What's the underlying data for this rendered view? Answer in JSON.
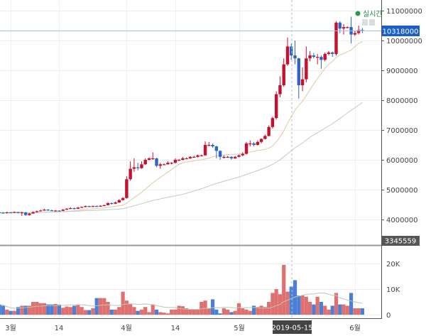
{
  "live_label": "실시간",
  "chart_data": [
    {
      "type": "candlestick",
      "price_axis": {
        "ticks": [
          11000000,
          10000000,
          9000000,
          8000000,
          7000000,
          6000000,
          5000000,
          4000000
        ],
        "range": [
          3345559,
          11350000
        ]
      },
      "current_price": "10318000",
      "min_price_label": "3345559",
      "x_ticks": [
        "3월",
        "14",
        "4월",
        "14",
        "5월",
        "6월"
      ],
      "crosshair_date": "2019-05-15",
      "grid": true,
      "colors": {
        "up": "#c8102e",
        "down": "#2f66c4",
        "ma_short": "#e0c9a0",
        "ma_long": "#b9cfc4",
        "current_price": "#1a5fc8"
      },
      "candles_millions_ohlc": [
        [
          4.24,
          4.26,
          4.21,
          4.23
        ],
        [
          4.23,
          4.25,
          4.2,
          4.22
        ],
        [
          4.22,
          4.26,
          4.2,
          4.24
        ],
        [
          4.24,
          4.25,
          4.21,
          4.23
        ],
        [
          4.23,
          4.27,
          4.22,
          4.25
        ],
        [
          4.25,
          4.26,
          4.2,
          4.22
        ],
        [
          4.22,
          4.26,
          4.12,
          4.24
        ],
        [
          4.24,
          4.25,
          4.12,
          4.15
        ],
        [
          4.15,
          4.22,
          4.13,
          4.2
        ],
        [
          4.2,
          4.27,
          4.19,
          4.25
        ],
        [
          4.25,
          4.3,
          4.23,
          4.28
        ],
        [
          4.28,
          4.33,
          4.27,
          4.3
        ],
        [
          4.3,
          4.36,
          4.29,
          4.33
        ],
        [
          4.33,
          4.35,
          4.29,
          4.31
        ],
        [
          4.31,
          4.33,
          4.28,
          4.3
        ],
        [
          4.3,
          4.32,
          4.28,
          4.3
        ],
        [
          4.3,
          4.31,
          4.27,
          4.29
        ],
        [
          4.29,
          4.35,
          4.28,
          4.33
        ],
        [
          4.33,
          4.38,
          4.32,
          4.36
        ],
        [
          4.36,
          4.41,
          4.35,
          4.38
        ],
        [
          4.38,
          4.4,
          4.34,
          4.36
        ],
        [
          4.36,
          4.42,
          4.35,
          4.4
        ],
        [
          4.4,
          4.44,
          4.39,
          4.42
        ],
        [
          4.42,
          4.47,
          4.41,
          4.45
        ],
        [
          4.45,
          4.46,
          4.41,
          4.43
        ],
        [
          4.43,
          4.47,
          4.42,
          4.45
        ],
        [
          4.45,
          4.47,
          4.42,
          4.44
        ],
        [
          4.44,
          4.48,
          4.43,
          4.46
        ],
        [
          4.46,
          4.5,
          4.45,
          4.48
        ],
        [
          4.48,
          4.58,
          4.47,
          4.55
        ],
        [
          4.55,
          4.57,
          4.5,
          4.53
        ],
        [
          4.53,
          4.6,
          4.52,
          4.57
        ],
        [
          4.57,
          4.68,
          4.56,
          4.65
        ],
        [
          4.65,
          4.75,
          4.63,
          4.72
        ],
        [
          4.72,
          5.45,
          4.7,
          5.35
        ],
        [
          5.35,
          5.95,
          5.3,
          5.7
        ],
        [
          5.7,
          6.05,
          5.6,
          5.75
        ],
        [
          5.75,
          5.9,
          5.65,
          5.72
        ],
        [
          5.72,
          5.95,
          5.7,
          5.85
        ],
        [
          5.85,
          6.05,
          5.83,
          6.0
        ],
        [
          6.0,
          6.08,
          5.98,
          6.05
        ],
        [
          6.05,
          6.25,
          6.0,
          6.05
        ],
        [
          6.05,
          6.07,
          5.75,
          5.8
        ],
        [
          5.8,
          5.9,
          5.7,
          5.85
        ],
        [
          5.85,
          5.88,
          5.82,
          5.85
        ],
        [
          5.85,
          5.95,
          5.84,
          5.9
        ],
        [
          5.9,
          5.92,
          5.85,
          5.9
        ],
        [
          5.9,
          6.05,
          5.88,
          6.0
        ],
        [
          6.0,
          6.03,
          5.96,
          6.0
        ],
        [
          6.0,
          6.1,
          5.98,
          6.05
        ],
        [
          6.05,
          6.08,
          6.02,
          6.05
        ],
        [
          6.05,
          6.12,
          6.03,
          6.1
        ],
        [
          6.1,
          6.13,
          6.07,
          6.1
        ],
        [
          6.1,
          6.18,
          6.08,
          6.15
        ],
        [
          6.15,
          6.18,
          6.12,
          6.15
        ],
        [
          6.15,
          6.62,
          6.14,
          6.5
        ],
        [
          6.5,
          6.6,
          6.45,
          6.5
        ],
        [
          6.5,
          6.55,
          6.4,
          6.45
        ],
        [
          6.45,
          6.47,
          6.05,
          6.3
        ],
        [
          6.3,
          6.32,
          6.0,
          6.1
        ],
        [
          6.1,
          6.15,
          6.05,
          6.1
        ],
        [
          6.1,
          6.13,
          6.07,
          6.1
        ],
        [
          6.1,
          6.12,
          6.0,
          6.05
        ],
        [
          6.05,
          6.13,
          6.03,
          6.1
        ],
        [
          6.1,
          6.18,
          6.08,
          6.15
        ],
        [
          6.15,
          6.25,
          6.12,
          6.2
        ],
        [
          6.2,
          6.6,
          6.18,
          6.55
        ],
        [
          6.55,
          6.65,
          6.45,
          6.55
        ],
        [
          6.55,
          6.6,
          6.45,
          6.5
        ],
        [
          6.5,
          6.65,
          6.48,
          6.6
        ],
        [
          6.6,
          6.72,
          6.55,
          6.7
        ],
        [
          6.7,
          6.85,
          6.68,
          6.8
        ],
        [
          6.8,
          7.15,
          6.78,
          7.1
        ],
        [
          7.1,
          7.45,
          7.05,
          7.4
        ],
        [
          7.4,
          8.3,
          7.35,
          8.2
        ],
        [
          8.2,
          8.8,
          8.1,
          8.5
        ],
        [
          8.5,
          9.4,
          8.45,
          9.2
        ],
        [
          9.2,
          10.1,
          9.15,
          9.8
        ],
        [
          9.8,
          9.9,
          9.35,
          9.5
        ],
        [
          9.5,
          10.0,
          9.2,
          9.4
        ],
        [
          9.4,
          9.42,
          8.05,
          8.5
        ],
        [
          8.5,
          9.1,
          8.3,
          8.7
        ],
        [
          8.7,
          9.8,
          8.6,
          9.4
        ],
        [
          9.4,
          9.65,
          9.3,
          9.5
        ],
        [
          9.5,
          9.58,
          9.4,
          9.45
        ],
        [
          9.45,
          9.55,
          9.2,
          9.45
        ],
        [
          9.45,
          9.5,
          9.05,
          9.35
        ],
        [
          9.35,
          9.6,
          9.3,
          9.55
        ],
        [
          9.55,
          9.65,
          9.5,
          9.6
        ],
        [
          9.6,
          9.63,
          9.45,
          9.55
        ],
        [
          9.55,
          10.65,
          9.5,
          10.6
        ],
        [
          10.6,
          10.65,
          10.25,
          10.4
        ],
        [
          10.4,
          10.55,
          10.2,
          10.45
        ],
        [
          10.45,
          10.47,
          10.4,
          10.45
        ],
        [
          10.45,
          10.8,
          9.9,
          10.2
        ],
        [
          10.2,
          10.32,
          10.15,
          10.25
        ],
        [
          10.25,
          10.5,
          10.2,
          10.35
        ],
        [
          10.35,
          10.42,
          10.25,
          10.318
        ]
      ]
    },
    {
      "type": "bar",
      "title": "",
      "y_ticks": [
        "20K",
        "10K",
        "0"
      ],
      "ylim": [
        0,
        25000
      ],
      "volumes_k": [
        4,
        3.5,
        2,
        1.5,
        1.5,
        3,
        3.5,
        3.5,
        3.5,
        5,
        5,
        4.5,
        4.5,
        4,
        4,
        4.2,
        3.9,
        2.7,
        3.2,
        3,
        3.5,
        4,
        3,
        1.8,
        1.8,
        2.5,
        6.5,
        6.5,
        6.5,
        5,
        2,
        2,
        3,
        9,
        5.5,
        4.3,
        3,
        1.5,
        2,
        3,
        1,
        4,
        2,
        1,
        0.8,
        0.5,
        2,
        2,
        3.5,
        3.3,
        2.5,
        2,
        2,
        2,
        5,
        5.5,
        2.5,
        6,
        2,
        0.5,
        2.5,
        2,
        1,
        1.5,
        4.5,
        2.5,
        2,
        1.5,
        3.5,
        3,
        3.5,
        3,
        5,
        8.5,
        10,
        8,
        19.5,
        9,
        11,
        13.5,
        7.5,
        7.5,
        7,
        5,
        4,
        7,
        5,
        3.5,
        2,
        3.5,
        8.5,
        4,
        4,
        3.5,
        8.5,
        2.5,
        2.5,
        2.5
      ]
    }
  ]
}
